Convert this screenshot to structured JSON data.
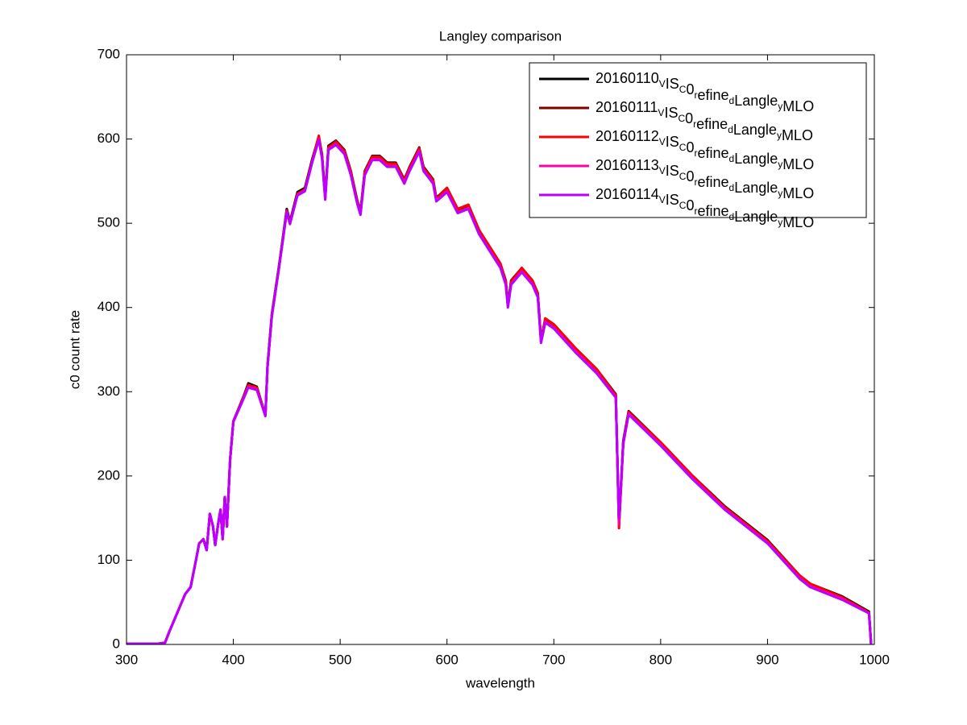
{
  "chart_data": {
    "type": "line",
    "title": "Langley comparison",
    "x_label": "wavelength",
    "y_label": "c0 count rate",
    "x": [
      300,
      330,
      336,
      340,
      345,
      350,
      355,
      360,
      365,
      368,
      372,
      375,
      378,
      381,
      383,
      386,
      388,
      390,
      392,
      394,
      397,
      400,
      410,
      414,
      422,
      430,
      432,
      436,
      443,
      450,
      453,
      460,
      467,
      474,
      480,
      483,
      486,
      489,
      496,
      504,
      510,
      516,
      519,
      523,
      530,
      537,
      544,
      552,
      560,
      565,
      574,
      578,
      587,
      590,
      600,
      610,
      620,
      630,
      640,
      650,
      655,
      657,
      660,
      670,
      680,
      685,
      688,
      692,
      700,
      720,
      740,
      758,
      761,
      765,
      770,
      800,
      830,
      860,
      900,
      930,
      940,
      970,
      995,
      997
    ],
    "series": [
      {
        "name": "20160110VISC0refinedLangleyMLO",
        "color": "#000000",
        "values": [
          1,
          1,
          2,
          15,
          30,
          45,
          60,
          68,
          100,
          120,
          125,
          112,
          155,
          140,
          118,
          145,
          160,
          125,
          175,
          140,
          220,
          265,
          296,
          310,
          306,
          272,
          332,
          392,
          452,
          517,
          502,
          537,
          542,
          577,
          603,
          582,
          532,
          592,
          598,
          587,
          562,
          527,
          514,
          562,
          580,
          580,
          572,
          572,
          552,
          567,
          590,
          567,
          552,
          530,
          542,
          517,
          522,
          492,
          472,
          452,
          432,
          404,
          432,
          447,
          432,
          417,
          362,
          387,
          380,
          352,
          327,
          297,
          142,
          242,
          277,
          240,
          200,
          164,
          124,
          82,
          72,
          57,
          39,
          0
        ]
      },
      {
        "name": "20160111VISC0refinedLangleyMLO",
        "color": "#800000",
        "values": [
          1,
          1,
          2,
          15,
          30,
          45,
          60,
          68,
          100,
          120,
          125,
          112,
          155,
          140,
          118,
          145,
          160,
          125,
          175,
          140,
          220,
          265,
          295,
          308,
          305,
          272,
          330,
          390,
          450,
          515,
          500,
          535,
          540,
          575,
          602,
          580,
          530,
          590,
          596,
          585,
          560,
          525,
          512,
          560,
          578,
          578,
          570,
          570,
          550,
          565,
          588,
          565,
          550,
          528,
          540,
          515,
          520,
          490,
          470,
          450,
          430,
          402,
          430,
          445,
          430,
          415,
          360,
          385,
          378,
          350,
          325,
          296,
          141,
          241,
          276,
          239,
          199,
          163,
          123,
          81,
          71,
          56,
          38,
          0
        ]
      },
      {
        "name": "20160112VISC0refinedLangleyMLO",
        "color": "#ff0000",
        "values": [
          1,
          1,
          2,
          15,
          30,
          45,
          60,
          68,
          100,
          120,
          125,
          112,
          155,
          140,
          118,
          145,
          160,
          125,
          175,
          140,
          220,
          265,
          295,
          308,
          305,
          272,
          330,
          390,
          450,
          515,
          500,
          535,
          540,
          575,
          604,
          580,
          530,
          590,
          597,
          586,
          561,
          526,
          513,
          561,
          579,
          579,
          571,
          571,
          551,
          566,
          589,
          566,
          551,
          529,
          542,
          517,
          522,
          492,
          472,
          452,
          431,
          403,
          431,
          447,
          432,
          416,
          361,
          387,
          380,
          352,
          327,
          296,
          138,
          240,
          276,
          240,
          200,
          163,
          123,
          82,
          72,
          56,
          38,
          0
        ]
      },
      {
        "name": "20160113VISC0refinedLangleyMLO",
        "color": "#ff00aa",
        "values": [
          1,
          1,
          2,
          15,
          30,
          45,
          60,
          68,
          100,
          120,
          125,
          112,
          155,
          140,
          118,
          145,
          160,
          125,
          175,
          140,
          220,
          265,
          294,
          306,
          303,
          272,
          330,
          390,
          450,
          514,
          500,
          534,
          539,
          574,
          600,
          578,
          529,
          588,
          594,
          583,
          558,
          524,
          511,
          558,
          576,
          576,
          568,
          568,
          548,
          563,
          586,
          563,
          548,
          527,
          538,
          513,
          518,
          488,
          468,
          448,
          428,
          401,
          428,
          443,
          428,
          413,
          359,
          383,
          376,
          348,
          323,
          294,
          142,
          239,
          274,
          237,
          197,
          161,
          121,
          79,
          69,
          54,
          37,
          0
        ]
      },
      {
        "name": "20160114VISC0refinedLangleyMLO",
        "color": "#bb00ff",
        "values": [
          1,
          1,
          2,
          15,
          30,
          45,
          60,
          68,
          100,
          120,
          125,
          112,
          155,
          140,
          118,
          145,
          160,
          125,
          175,
          140,
          220,
          264,
          293,
          305,
          302,
          271,
          329,
          389,
          449,
          513,
          499,
          533,
          538,
          573,
          599,
          577,
          528,
          587,
          593,
          582,
          557,
          523,
          510,
          557,
          575,
          575,
          567,
          567,
          547,
          562,
          585,
          562,
          547,
          526,
          537,
          512,
          517,
          487,
          467,
          447,
          427,
          400,
          427,
          442,
          427,
          412,
          358,
          382,
          375,
          347,
          322,
          293,
          150,
          238,
          273,
          236,
          196,
          160,
          120,
          78,
          68,
          53,
          37,
          0
        ]
      }
    ],
    "xlim": [
      300,
      1000
    ],
    "ylim": [
      0,
      700
    ],
    "xticks": [
      300,
      400,
      500,
      600,
      700,
      800,
      900,
      1000
    ],
    "yticks": [
      0,
      100,
      200,
      300,
      400,
      500,
      600,
      700
    ],
    "legend": "upper right"
  }
}
